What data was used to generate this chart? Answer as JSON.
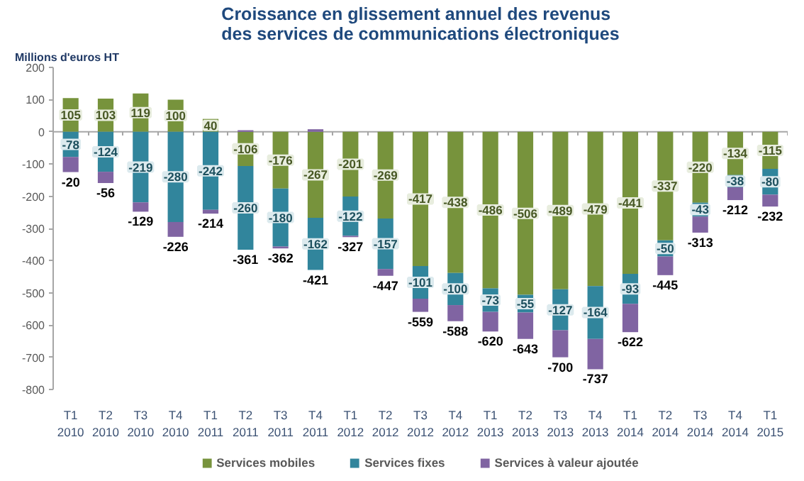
{
  "chart_data": {
    "type": "bar",
    "title": "Croissance en glissement annuel des revenus\ndes services de communications électroniques",
    "ylabel": "Millions d'euros HT",
    "categories": [
      "T1 2010",
      "T2 2010",
      "T3 2010",
      "T4 2010",
      "T1 2011",
      "T2 2011",
      "T3 2011",
      "T4 2011",
      "T1 2012",
      "T2 2012",
      "T3 2012",
      "T4 2012",
      "T1 2013",
      "T2 2013",
      "T3 2013",
      "T4 2013",
      "T1 2014",
      "T2 2014",
      "T3 2014",
      "T4 2014",
      "T1 2015"
    ],
    "stacked": true,
    "ylim": [
      -800,
      200
    ],
    "yticks": [
      -800,
      -700,
      -600,
      -500,
      -400,
      -300,
      -200,
      -100,
      0,
      100,
      200
    ],
    "grid": false,
    "legend": "bottom",
    "ref_lines": [
      {
        "axis": "y",
        "value": 0,
        "color": "#a6a6a6"
      }
    ],
    "series": [
      {
        "name": "Services mobiles",
        "color": "#77933c",
        "values": [
          105,
          103,
          119,
          100,
          40,
          -106,
          -176,
          -267,
          -201,
          -269,
          -417,
          -438,
          -486,
          -506,
          -489,
          -479,
          -441,
          -337,
          -220,
          -134,
          -115
        ],
        "value_labels": [
          "105",
          "103",
          "119",
          "100",
          "40",
          "-106",
          "-176",
          "-267",
          "-201",
          "-269",
          "-417",
          "-438",
          "-486",
          "-506",
          "-489",
          "-479",
          "-441",
          "-337",
          "-220",
          "-134",
          "-115"
        ]
      },
      {
        "name": "Services fixes",
        "color": "#31859c",
        "values": [
          -78,
          -124,
          -219,
          -280,
          -242,
          -260,
          -180,
          -162,
          -122,
          -157,
          -101,
          -100,
          -73,
          -55,
          -127,
          -164,
          -93,
          -50,
          -43,
          -38,
          -80
        ],
        "value_labels": [
          "-78",
          "-124",
          "-219",
          "-280",
          "-242",
          "-260",
          "-180",
          "-162",
          "-122",
          "-157",
          "-101",
          "-100",
          "-73",
          "-55",
          "-127",
          "-164",
          "-93",
          "-50",
          "-43",
          "-38",
          "-80"
        ]
      },
      {
        "name": "Services à valeur ajoutée",
        "color": "#8064a2",
        "values": [
          -47,
          -35,
          -29,
          -46,
          -12,
          5,
          -6,
          8,
          -4,
          -21,
          -41,
          -50,
          -61,
          -82,
          -84,
          -94,
          -88,
          -58,
          -50,
          -40,
          -37
        ]
      }
    ],
    "totals": [
      "-20",
      "-56",
      "-129",
      "-226",
      "-214",
      "-361",
      "-362",
      "-421",
      "-327",
      "-447",
      "-559",
      "-588",
      "-620",
      "-643",
      "-700",
      "-737",
      "-622",
      "-445",
      "-313",
      "-212",
      "-232"
    ]
  }
}
